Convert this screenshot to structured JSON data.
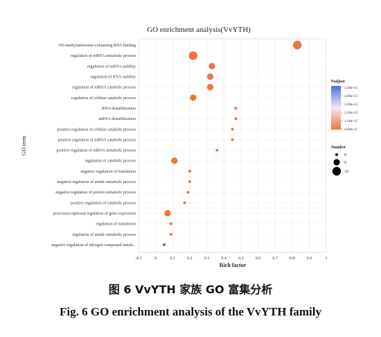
{
  "chart_data": {
    "type": "scatter",
    "title": "GO enrichment analysis(VvYTH)",
    "xlabel": "Rich factor",
    "ylabel": "GO term",
    "xlim": [
      -0.1,
      1.0
    ],
    "x_ticks": [
      "-0.1",
      "0",
      "0.1",
      "0.2",
      "0.3",
      "0.4",
      "0.5",
      "0.6",
      "0.7",
      "0.8",
      "0.9",
      "1"
    ],
    "x_tick_values": [
      -0.1,
      0,
      0.1,
      0.2,
      0.3,
      0.4,
      0.5,
      0.6,
      0.7,
      0.8,
      0.9,
      1.0
    ],
    "grid": true,
    "points": [
      {
        "term": "N6-methyladenosine-containing RNA binding",
        "x": 0.83,
        "number": 10,
        "padjust": 0.0
      },
      {
        "term": "regulation of mRNA metabolic process",
        "x": 0.22,
        "number": 10,
        "padjust": 0.0
      },
      {
        "term": "regulation of mRNA stability",
        "x": 0.33,
        "number": 9,
        "padjust": 0.0
      },
      {
        "term": "regulation of RNA stability",
        "x": 0.32,
        "number": 9,
        "padjust": 0.0
      },
      {
        "term": "regulation of mRNA catabolic process",
        "x": 0.32,
        "number": 9,
        "padjust": 0.0
      },
      {
        "term": "regulation of cellular catabolic process",
        "x": 0.22,
        "number": 9,
        "padjust": 0.0
      },
      {
        "term": "RNA destabilization",
        "x": 0.47,
        "number": 8,
        "padjust": 0.0
      },
      {
        "term": "mRNA destabilization",
        "x": 0.47,
        "number": 8,
        "padjust": 0.0
      },
      {
        "term": "positive regulation of cellular catabolic process",
        "x": 0.45,
        "number": 8,
        "padjust": 0.0
      },
      {
        "term": "positive regulation of mRNA catabolic process",
        "x": 0.45,
        "number": 8,
        "padjust": 0.0
      },
      {
        "term": "positive regulation of mRNA metabolic process",
        "x": 0.36,
        "number": 8,
        "padjust": 0.0
      },
      {
        "term": "regulation of catabolic process",
        "x": 0.11,
        "number": 9,
        "padjust": 0.0
      },
      {
        "term": "negative regulation of translation",
        "x": 0.2,
        "number": 8,
        "padjust": 0.0
      },
      {
        "term": "negative regulation of amide metabolic process",
        "x": 0.2,
        "number": 8,
        "padjust": 0.0
      },
      {
        "term": "negative regulation of protein metabolic process",
        "x": 0.19,
        "number": 8,
        "padjust": 0.0
      },
      {
        "term": "positive regulation of catabolic process",
        "x": 0.17,
        "number": 8,
        "padjust": 0.0
      },
      {
        "term": "post-transcriptional regulation of gene expression",
        "x": 0.07,
        "number": 9,
        "padjust": 0.0
      },
      {
        "term": "regulation of translation",
        "x": 0.09,
        "number": 8,
        "padjust": 0.0
      },
      {
        "term": "regulation of amide metabolic process",
        "x": 0.09,
        "number": 8,
        "padjust": 0.0
      },
      {
        "term": "negative regulation of nitrogen compound metab...",
        "x": 0.05,
        "number": 8,
        "padjust": 5e-15
      }
    ],
    "color_legend": {
      "title": "Padjust",
      "labels": [
        "5.00e-15",
        "4.00e-15",
        "3.00e-15",
        "2.00e-15",
        "1.00e-15",
        "0.00e+0"
      ],
      "low_color": "#f0743e",
      "high_color": "#4f6fe0"
    },
    "size_legend": {
      "title": "Number",
      "labels": [
        "8",
        "9",
        "10"
      ],
      "values": [
        8,
        9,
        10
      ]
    }
  },
  "caption": {
    "cn": "图 6 VvYTH 家族 GO 富集分析",
    "en": "Fig. 6 GO enrichment analysis of the VvYTH family"
  }
}
